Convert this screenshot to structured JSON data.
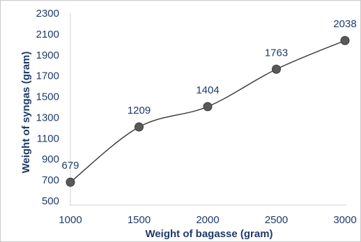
{
  "chart_data": {
    "type": "line",
    "title": "",
    "xlabel": "Weight of bagasse (gram)",
    "ylabel": "Weight of syngas (gram)",
    "x": [
      1000,
      1500,
      2000,
      2500,
      3000
    ],
    "series": [
      {
        "values": [
          679,
          1209,
          1404,
          1763,
          2038
        ]
      }
    ],
    "data_labels": [
      "679",
      "1209",
      "1404",
      "1763",
      "2038"
    ],
    "xlim": [
      1000,
      3000
    ],
    "ylim": [
      500,
      2300
    ],
    "x_ticks": [
      "1000",
      "1500",
      "2000",
      "2500",
      "3000"
    ],
    "y_ticks": [
      "500",
      "700",
      "900",
      "1100",
      "1300",
      "1500",
      "1700",
      "1900",
      "2100",
      "2300"
    ],
    "grid": false,
    "smooth": true,
    "colors": {
      "line": "#404040",
      "marker": "#595959",
      "text": "#1f3a68",
      "axis": "#d0d0d0"
    }
  }
}
